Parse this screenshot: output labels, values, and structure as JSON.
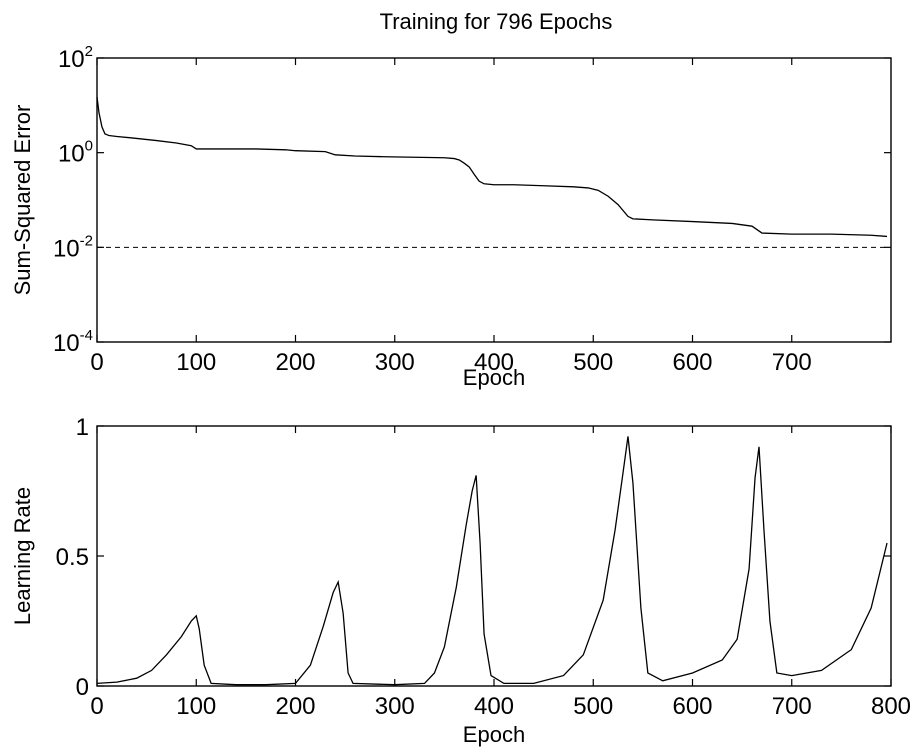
{
  "chart_data": [
    {
      "type": "line",
      "title": "Training for 796 Epochs",
      "xlabel": "Epoch",
      "ylabel": "Sum-Squared Error",
      "xlim": [
        0,
        800
      ],
      "ylim": [
        0.0001,
        100
      ],
      "yscale": "log",
      "grid": false,
      "xticks": [
        0,
        100,
        200,
        300,
        400,
        500,
        600,
        700
      ],
      "yticks": [
        {
          "value": 100,
          "base": "10",
          "exp": "2"
        },
        {
          "value": 1,
          "base": "10",
          "exp": "0"
        },
        {
          "value": 0.01,
          "base": "10",
          "exp": "-2"
        },
        {
          "value": 0.0001,
          "base": "10",
          "exp": "-4"
        }
      ],
      "series": [
        {
          "role": "error",
          "x": [
            0,
            2,
            5,
            8,
            12,
            20,
            40,
            60,
            80,
            95,
            100,
            130,
            160,
            190,
            200,
            230,
            240,
            260,
            290,
            320,
            350,
            360,
            365,
            370,
            375,
            380,
            385,
            390,
            400,
            420,
            450,
            480,
            495,
            505,
            515,
            525,
            535,
            540,
            560,
            600,
            640,
            660,
            670,
            700,
            740,
            780,
            796
          ],
          "y": [
            15,
            7,
            3.5,
            2.5,
            2.3,
            2.2,
            2.0,
            1.8,
            1.6,
            1.4,
            1.2,
            1.2,
            1.2,
            1.15,
            1.1,
            1.05,
            0.9,
            0.85,
            0.82,
            0.8,
            0.78,
            0.75,
            0.7,
            0.6,
            0.5,
            0.35,
            0.25,
            0.22,
            0.21,
            0.21,
            0.2,
            0.19,
            0.18,
            0.16,
            0.12,
            0.08,
            0.045,
            0.04,
            0.038,
            0.035,
            0.032,
            0.028,
            0.02,
            0.019,
            0.019,
            0.018,
            0.017
          ]
        },
        {
          "role": "goal",
          "x": [
            0,
            796
          ],
          "y": [
            0.01,
            0.01
          ]
        }
      ]
    },
    {
      "type": "line",
      "xlabel": "Epoch",
      "ylabel": "Learning Rate",
      "xlim": [
        0,
        800
      ],
      "ylim": [
        0,
        1
      ],
      "grid": false,
      "xticks": [
        0,
        100,
        200,
        300,
        400,
        500,
        600,
        700,
        800
      ],
      "yticks": [
        0,
        0.5,
        1
      ],
      "yticklabels": [
        "0",
        "0.5",
        "1"
      ],
      "series": [
        {
          "x": [
            0,
            20,
            40,
            55,
            70,
            85,
            95,
            100,
            103,
            108,
            115,
            140,
            170,
            200,
            215,
            228,
            238,
            243,
            248,
            253,
            258,
            300,
            330,
            340,
            350,
            362,
            372,
            378,
            382,
            386,
            390,
            397,
            410,
            440,
            470,
            490,
            510,
            522,
            530,
            535,
            540,
            548,
            555,
            570,
            600,
            630,
            645,
            657,
            663,
            667,
            672,
            678,
            685,
            700,
            730,
            760,
            780,
            796
          ],
          "y": [
            0.01,
            0.015,
            0.03,
            0.06,
            0.12,
            0.19,
            0.25,
            0.27,
            0.22,
            0.08,
            0.01,
            0.005,
            0.005,
            0.01,
            0.08,
            0.23,
            0.36,
            0.4,
            0.28,
            0.05,
            0.01,
            0.005,
            0.01,
            0.05,
            0.15,
            0.38,
            0.62,
            0.75,
            0.81,
            0.55,
            0.2,
            0.04,
            0.01,
            0.01,
            0.04,
            0.12,
            0.33,
            0.6,
            0.82,
            0.96,
            0.78,
            0.3,
            0.05,
            0.02,
            0.05,
            0.1,
            0.18,
            0.45,
            0.8,
            0.92,
            0.6,
            0.25,
            0.05,
            0.04,
            0.06,
            0.14,
            0.3,
            0.55
          ]
        }
      ]
    }
  ]
}
